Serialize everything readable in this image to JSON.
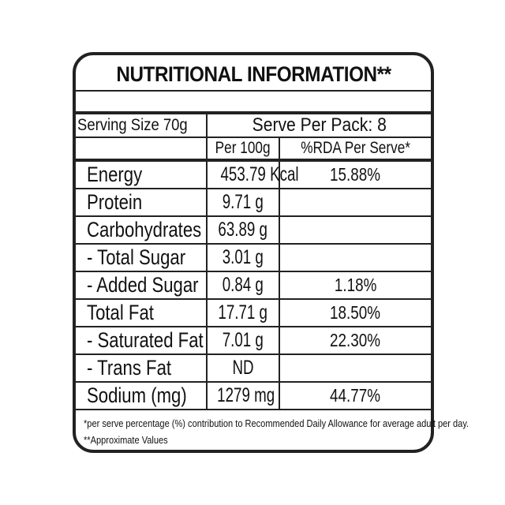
{
  "title": "NUTRITIONAL INFORMATION**",
  "serving_size": "Serving Size 70g",
  "serve_per_pack": "Serve Per Pack: 8",
  "columns": {
    "per100": "Per 100g",
    "rda": "%RDA Per Serve*"
  },
  "rows": [
    {
      "name": "Energy",
      "per100": "453.79 Kcal",
      "rda": "15.88%"
    },
    {
      "name": "Protein",
      "per100": "9.71 g",
      "rda": ""
    },
    {
      "name": "Carbohydrates",
      "per100": "63.89 g",
      "rda": ""
    },
    {
      "name": "- Total Sugar",
      "per100": "3.01 g",
      "rda": ""
    },
    {
      "name": "- Added Sugar",
      "per100": "0.84 g",
      "rda": "1.18%"
    },
    {
      "name": "Total Fat",
      "per100": "17.71 g",
      "rda": "18.50%"
    },
    {
      "name": "- Saturated Fat",
      "per100": "7.01 g",
      "rda": "22.30%"
    },
    {
      "name": "- Trans Fat",
      "per100": "ND",
      "rda": ""
    },
    {
      "name": "Sodium (mg)",
      "per100": "1279 mg",
      "rda": "44.77%"
    }
  ],
  "footnotes": [
    "*per serve percentage (%) contribution to Recommended Daily Allowance for average adult per day.",
    "**Approximate Values"
  ]
}
